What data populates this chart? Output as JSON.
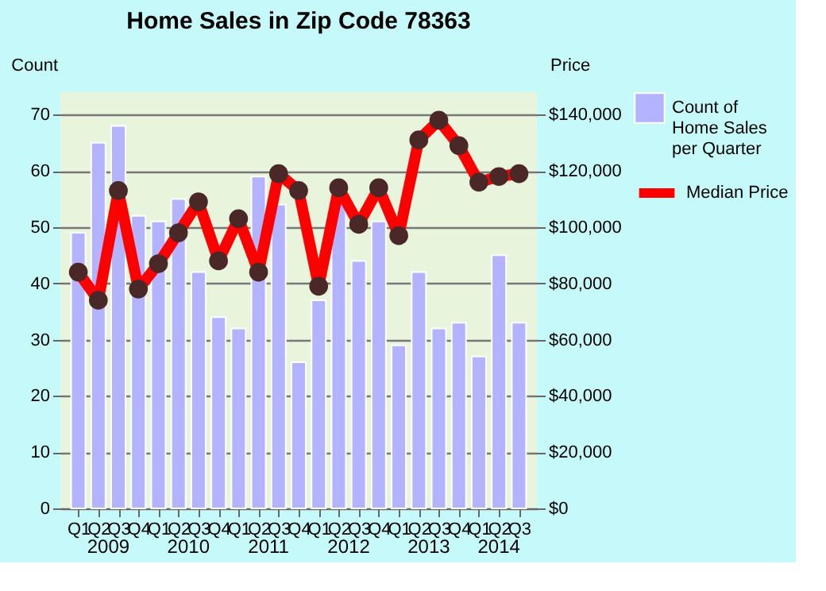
{
  "chart_data": {
    "type": "bar",
    "title": "Home Sales in Zip Code 78363",
    "ylabel": "Count",
    "y2label": "Price",
    "categories": [
      "Q1",
      "Q2",
      "Q3",
      "Q4",
      "Q1",
      "Q2",
      "Q3",
      "Q4",
      "Q1",
      "Q2",
      "Q3",
      "Q4",
      "Q1",
      "Q2",
      "Q3",
      "Q4",
      "Q1",
      "Q2",
      "Q3",
      "Q4",
      "Q1",
      "Q2",
      "Q3"
    ],
    "series": [
      {
        "name": "Count of Home Sales per Quarter",
        "color": "#b3b3ff",
        "values": [
          49,
          65,
          68,
          52,
          51,
          55,
          42,
          34,
          32,
          59,
          54,
          26,
          37,
          55,
          44,
          51,
          29,
          42,
          32,
          33,
          27,
          45,
          33
        ]
      },
      {
        "name": "Median Price",
        "type": "line",
        "axis": "y2",
        "color": "#ff0000",
        "marker": "circle",
        "values": [
          84000,
          74000,
          113000,
          78000,
          87000,
          98000,
          109000,
          88000,
          103000,
          84000,
          119000,
          113000,
          79000,
          114000,
          101000,
          114000,
          97000,
          131000,
          138000,
          129000,
          116000,
          118000,
          119000
        ]
      }
    ],
    "annotations": [
      "2009",
      "2010",
      "2011",
      "2012",
      "2013",
      "2014"
    ],
    "ylim": [
      0,
      74
    ],
    "yticks": [
      0,
      10,
      20,
      30,
      40,
      50,
      60,
      70
    ],
    "y2lim": [
      0,
      148000
    ],
    "y2ticks": [
      {
        "value": 0,
        "label": "$0"
      },
      {
        "value": 20000,
        "label": "$20,000"
      },
      {
        "value": 40000,
        "label": "$40,000"
      },
      {
        "value": 60000,
        "label": "$60,000"
      },
      {
        "value": 80000,
        "label": "$80,000"
      },
      {
        "value": 100000,
        "label": "$100,000"
      },
      {
        "value": 120000,
        "label": "$120,000"
      },
      {
        "value": 140000,
        "label": "$140,000"
      }
    ],
    "grid": "y",
    "legend": "right"
  }
}
